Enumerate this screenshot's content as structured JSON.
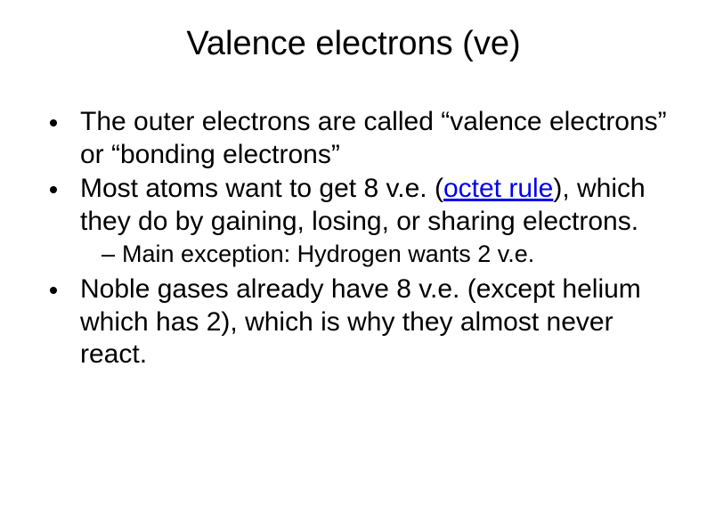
{
  "slide": {
    "title": "Valence electrons (ve)",
    "bullets": {
      "b1": "The outer electrons are called “valence electrons” or “bonding electrons”",
      "b2_pre": "Most atoms want to get 8 v.e. (",
      "b2_link": "octet rule",
      "b2_post": "), which they do by gaining, losing, or sharing electrons.",
      "b2_sub": "Main exception: Hydrogen wants 2 v.e.",
      "b3": "Noble gases already have 8 v.e. (except helium which has 2), which is why they almost never react."
    }
  },
  "style": {
    "background_color": "#ffffff",
    "text_color": "#000000",
    "link_color": "#0000ee",
    "title_fontsize": 38,
    "body_fontsize": 30,
    "sub_fontsize": 27,
    "font_family": "Arial"
  }
}
